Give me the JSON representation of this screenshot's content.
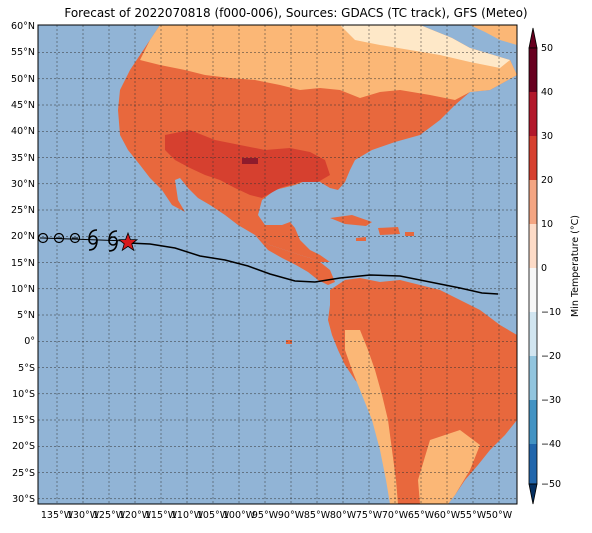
{
  "title": "Forecast of 2022070818 (f000-006), Sources: GDACS (TC track), GFS (Meteo)",
  "map": {
    "lat_labels": [
      "60°N",
      "55°N",
      "50°N",
      "45°N",
      "40°N",
      "35°N",
      "30°N",
      "25°N",
      "20°N",
      "15°N",
      "10°N",
      "5°N",
      "0°",
      "5°S",
      "10°S",
      "15°S",
      "20°S",
      "25°S",
      "30°S"
    ],
    "lon_labels": [
      "135°W",
      "130°W",
      "125°W",
      "120°W",
      "115°W",
      "110°W",
      "105°W",
      "100°W",
      "95°W",
      "90°W",
      "85°W",
      "80°W",
      "75°W",
      "70°W",
      "65°W",
      "60°W",
      "55°W",
      "50°W"
    ],
    "ocean_color": "#91b4d6",
    "track_symbols": [
      "circle",
      "circle",
      "circle",
      "tropical-storm",
      "tropical-storm"
    ],
    "storm_marker": "red-star"
  },
  "colorbar": {
    "label": "Min Temperature (°C)",
    "ticks": [
      "50",
      "40",
      "30",
      "20",
      "10",
      "0",
      "−10",
      "−20",
      "−30",
      "−40",
      "−50"
    ],
    "colors": [
      "#67001f",
      "#b2182b",
      "#d6402f",
      "#f4a582",
      "#fddbc7",
      "#f7f7f7",
      "#d1e5f0",
      "#92c5de",
      "#4393c3",
      "#2166ac",
      "#053061"
    ]
  }
}
